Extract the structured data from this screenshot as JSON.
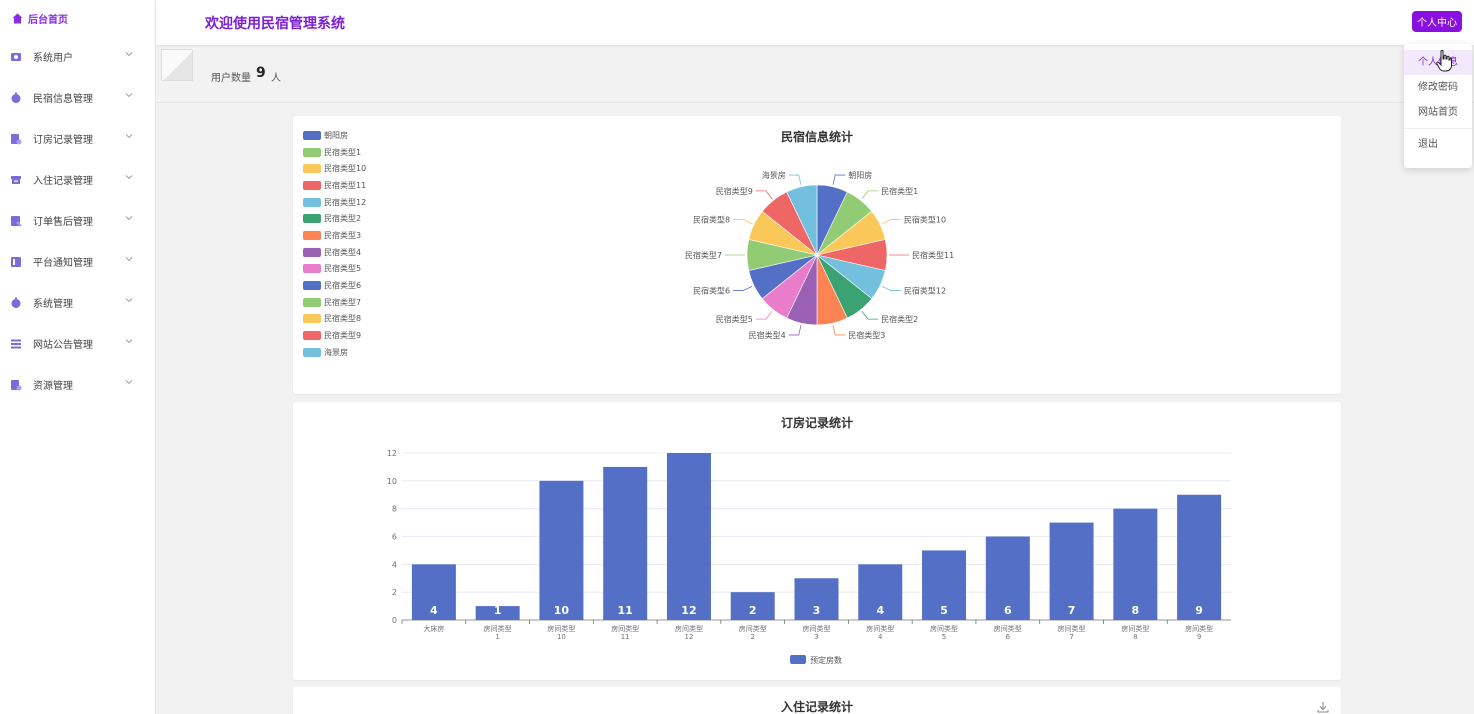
{
  "sidebar": {
    "home_label": "后台首页",
    "items": [
      {
        "label": "系统用户",
        "icon": "users-icon"
      },
      {
        "label": "民宿信息管理",
        "icon": "homestay-icon"
      },
      {
        "label": "订房记录管理",
        "icon": "booking-icon"
      },
      {
        "label": "入住记录管理",
        "icon": "checkin-icon"
      },
      {
        "label": "订单售后管理",
        "icon": "aftersale-icon"
      },
      {
        "label": "平台通知管理",
        "icon": "notice-icon"
      },
      {
        "label": "系统管理",
        "icon": "system-icon"
      },
      {
        "label": "网站公告管理",
        "icon": "announcement-icon"
      },
      {
        "label": "资源管理",
        "icon": "resource-icon"
      }
    ]
  },
  "header": {
    "title": "欢迎使用民宿管理系统",
    "user_button": "个人中心"
  },
  "dropdown": {
    "items": [
      "个人信息",
      "修改密码",
      "网站首页"
    ],
    "logout": "退出"
  },
  "stats": {
    "user_count_label": "用户数量",
    "user_count": "9",
    "user_count_unit": "人"
  },
  "colors": {
    "accent": "#8a10e0",
    "title": "#7b1fd6",
    "bar": "#5470c6"
  },
  "chart_data": [
    {
      "type": "pie",
      "title": "民宿信息统计",
      "legend_position": "top-left",
      "categories": [
        "朝阳房",
        "民宿类型1",
        "民宿类型10",
        "民宿类型11",
        "民宿类型12",
        "民宿类型2",
        "民宿类型3",
        "民宿类型4",
        "民宿类型5",
        "民宿类型6",
        "民宿类型7",
        "民宿类型8",
        "民宿类型9",
        "海景房"
      ],
      "values": [
        1,
        1,
        1,
        1,
        1,
        1,
        1,
        1,
        1,
        1,
        1,
        1,
        1,
        1
      ],
      "colors": [
        "#5470c6",
        "#91cc75",
        "#fac858",
        "#ee6666",
        "#73c0de",
        "#3ba272",
        "#fc8452",
        "#9a60b4",
        "#ea7ccc",
        "#5470c6",
        "#91cc75",
        "#fac858",
        "#ee6666",
        "#73c0de"
      ]
    },
    {
      "type": "bar",
      "title": "订房记录统计",
      "categories": [
        "大床房",
        "房间类型\n1",
        "房间类型\n10",
        "房间类型\n11",
        "房间类型\n12",
        "房间类型\n2",
        "房间类型\n3",
        "房间类型\n4",
        "房间类型\n5",
        "房间类型\n6",
        "房间类型\n7",
        "房间类型\n8",
        "房间类型\n9"
      ],
      "series": [
        {
          "name": "预定房数",
          "values": [
            4,
            1,
            10,
            11,
            12,
            2,
            3,
            4,
            5,
            6,
            7,
            8,
            9
          ]
        }
      ],
      "ylim": [
        0,
        12
      ],
      "yticks": [
        0,
        2,
        4,
        6,
        8,
        10,
        12
      ],
      "legend_position": "bottom-center",
      "grid": true
    },
    {
      "type": "bar",
      "title": "入住记录统计"
    }
  ]
}
